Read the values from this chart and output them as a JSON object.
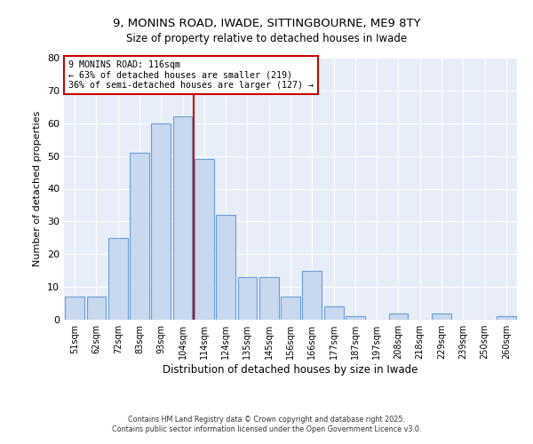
{
  "title": "9, MONINS ROAD, IWADE, SITTINGBOURNE, ME9 8TY",
  "subtitle": "Size of property relative to detached houses in Iwade",
  "xlabel": "Distribution of detached houses by size in Iwade",
  "ylabel": "Number of detached properties",
  "bar_labels": [
    "51sqm",
    "62sqm",
    "72sqm",
    "83sqm",
    "93sqm",
    "104sqm",
    "114sqm",
    "124sqm",
    "135sqm",
    "145sqm",
    "156sqm",
    "166sqm",
    "177sqm",
    "187sqm",
    "197sqm",
    "208sqm",
    "218sqm",
    "229sqm",
    "239sqm",
    "250sqm",
    "260sqm"
  ],
  "bar_values": [
    7,
    7,
    25,
    51,
    60,
    62,
    49,
    32,
    13,
    13,
    7,
    15,
    4,
    1,
    0,
    2,
    0,
    2,
    0,
    0,
    1
  ],
  "bar_color": "#c8d8ee",
  "bar_edge_color": "#6a9fd8",
  "ylim": [
    0,
    80
  ],
  "yticks": [
    0,
    10,
    20,
    30,
    40,
    50,
    60,
    70,
    80
  ],
  "vline_x_idx": 6,
  "vline_color": "#cc0000",
  "annotation_title": "9 MONINS ROAD: 116sqm",
  "annotation_line1": "← 63% of detached houses are smaller (219)",
  "annotation_line2": "36% of semi-detached houses are larger (127) →",
  "annotation_box_color": "#cc0000",
  "footnote1": "Contains HM Land Registry data © Crown copyright and database right 2025.",
  "footnote2": "Contains public sector information licensed under the Open Government Licence v3.0.",
  "bg_color": "#ffffff",
  "plot_bg_color": "#e8eef8",
  "grid_color": "#ffffff"
}
